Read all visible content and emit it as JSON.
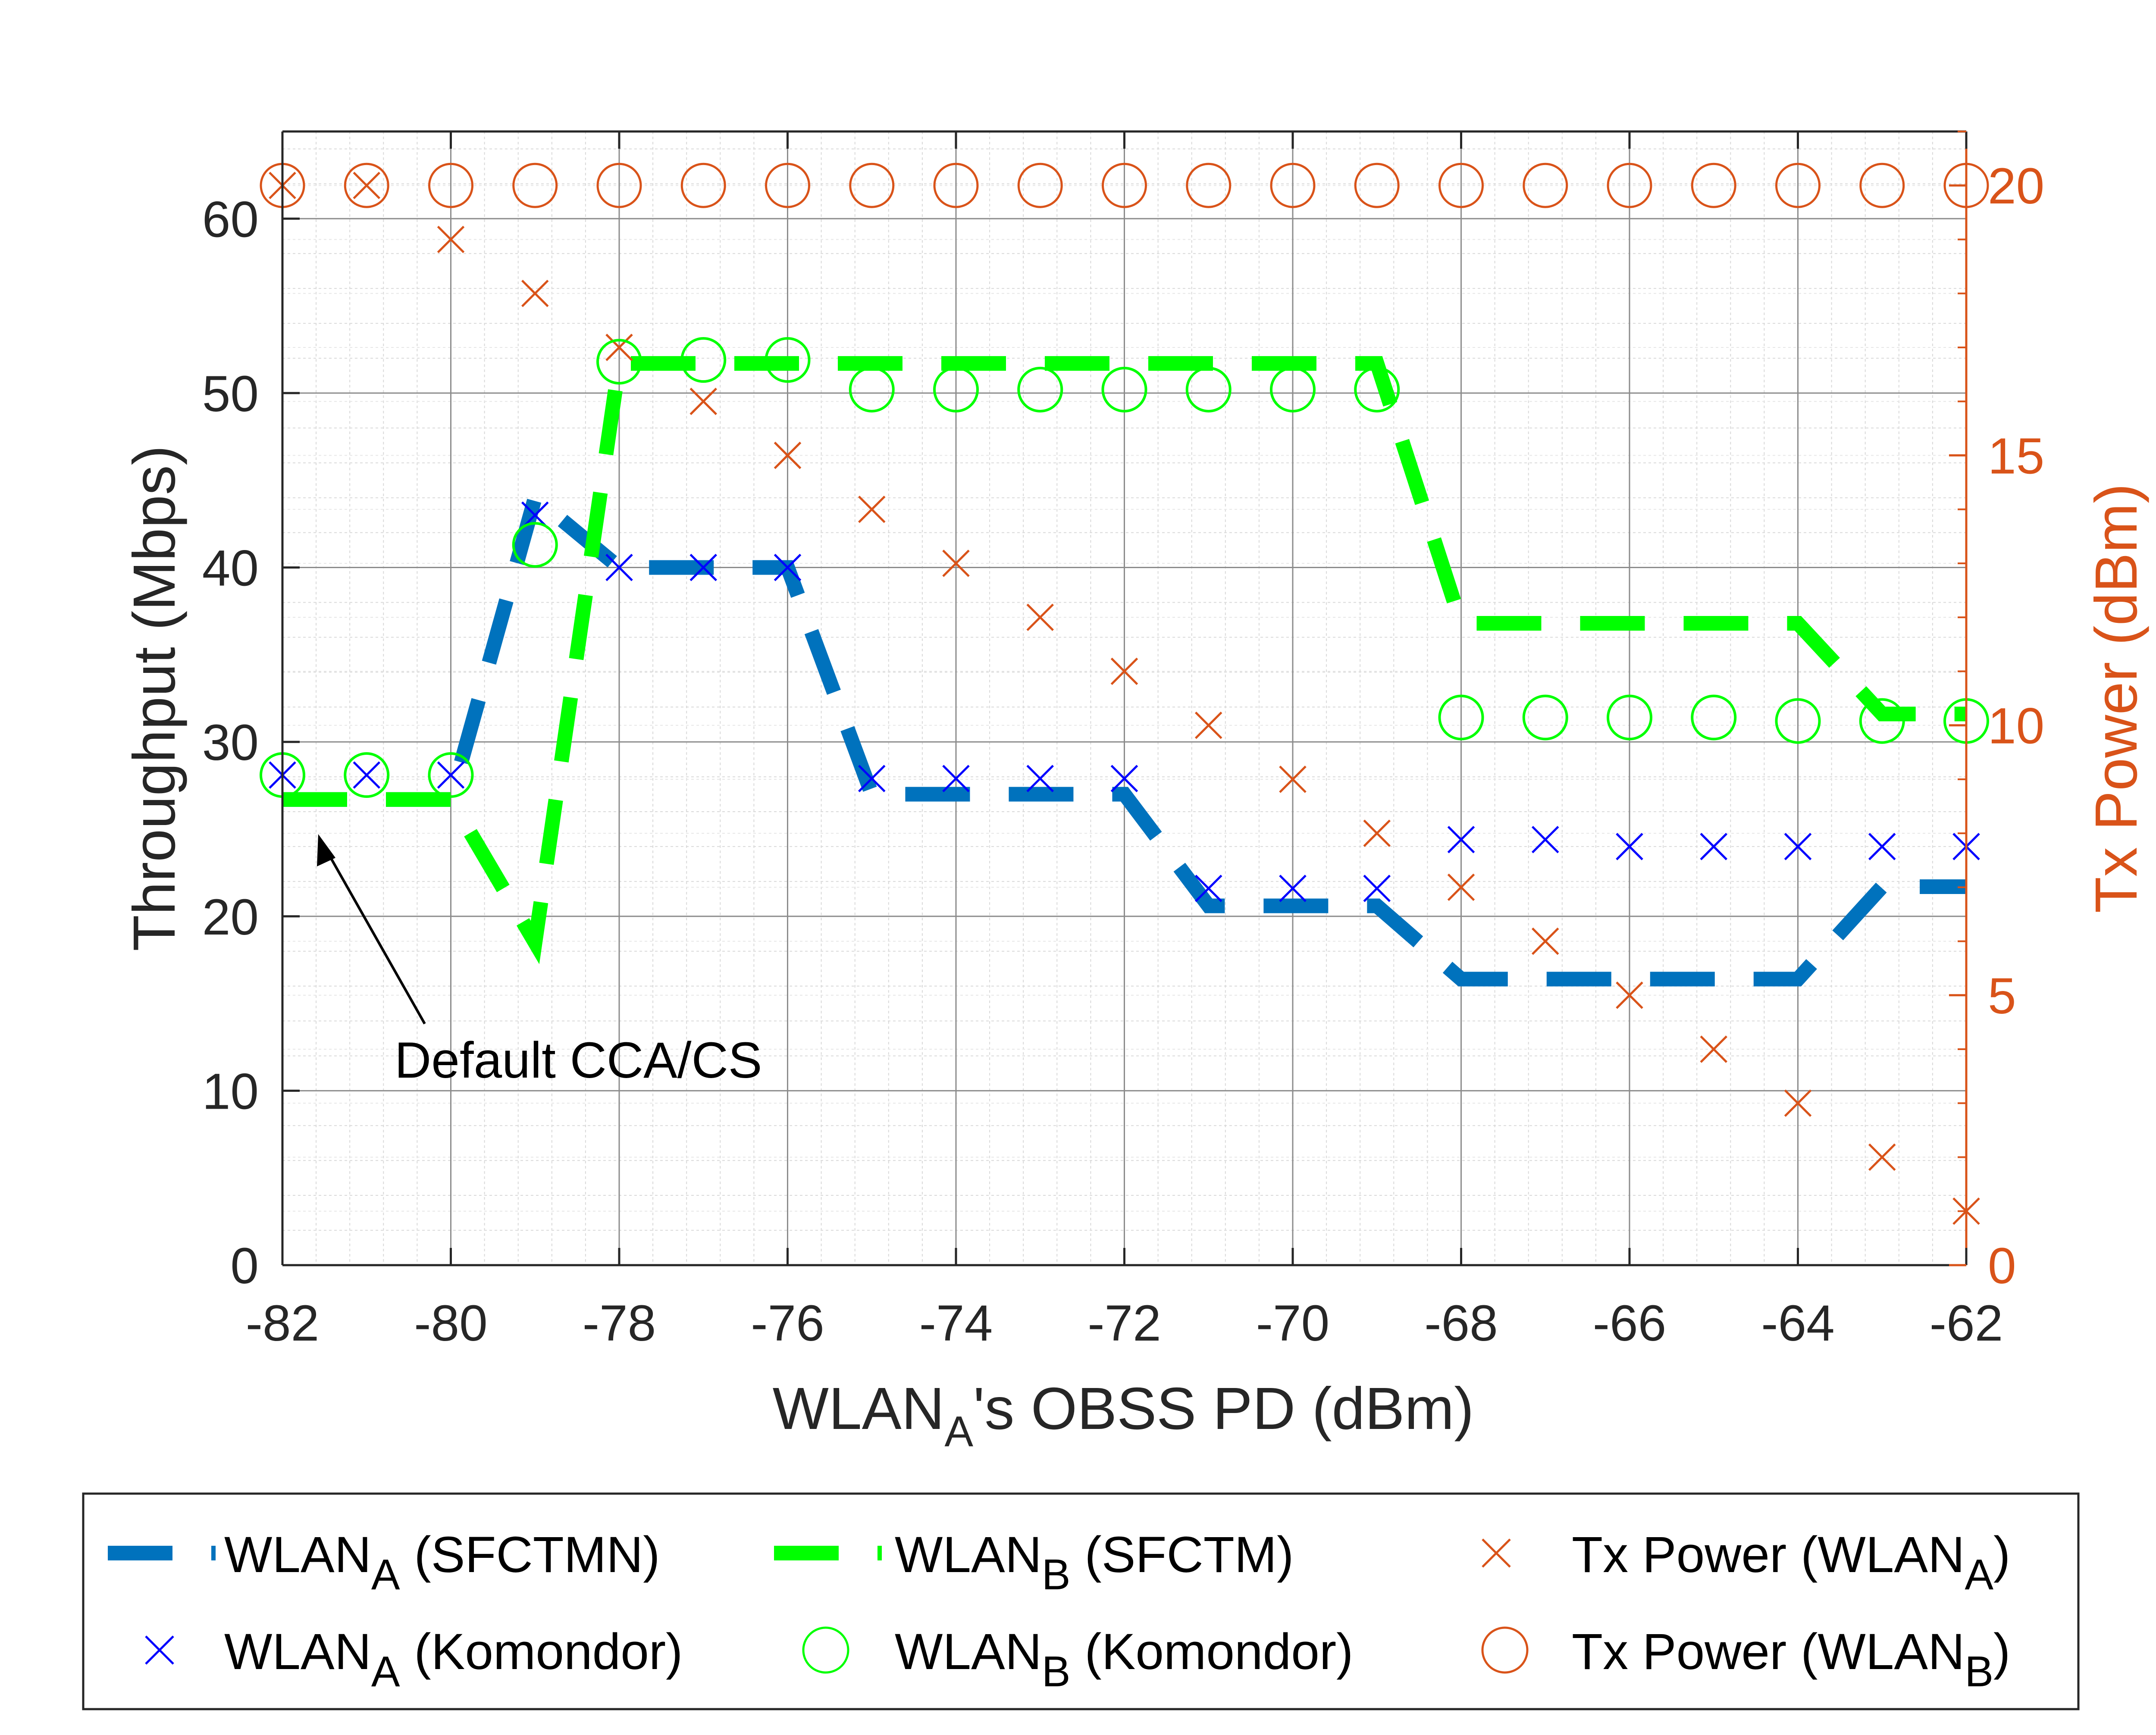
{
  "colors": {
    "wlanA": "#0072BD",
    "wlanB": "#00FF00",
    "txA": "#D95319",
    "txB": "#D95319",
    "komA": "#0000FF",
    "axis": "#262626"
  },
  "chart_data": {
    "type": "line",
    "xlabel": {
      "pre": "WLAN",
      "sub": "A",
      "post": "'s OBSS PD (dBm)"
    },
    "ylabel_left": "Throughput (Mbps)",
    "ylabel_right": "Tx Power (dBm)",
    "xlim": [
      -82,
      -62
    ],
    "ylim_left": [
      0,
      65
    ],
    "ylim_right": [
      0,
      21
    ],
    "x_ticks": [
      -82,
      -80,
      -78,
      -76,
      -74,
      -72,
      -70,
      -68,
      -66,
      -64,
      -62
    ],
    "x_tick_labels": [
      "-82",
      "-80",
      "-78",
      "-76",
      "-74",
      "-72",
      "-70",
      "-68",
      "-66",
      "-64",
      "-62"
    ],
    "y_left_ticks": [
      0,
      10,
      20,
      30,
      40,
      50,
      60
    ],
    "y_left_tick_labels": [
      "0",
      "10",
      "20",
      "30",
      "40",
      "50",
      "60"
    ],
    "y_right_ticks": [
      0,
      5,
      10,
      15,
      20
    ],
    "y_right_tick_labels": [
      "0",
      "5",
      "10",
      "15",
      "20"
    ],
    "grid": true,
    "minor_grid": true,
    "annotation": {
      "text": "Default CCA/CS",
      "points_to": [
        -81.7,
        24.8
      ]
    },
    "legend_position": "bottom",
    "x": [
      -82,
      -81,
      -80,
      -79,
      -78,
      -77,
      -76,
      -75,
      -74,
      -73,
      -72,
      -71,
      -70,
      -69,
      -68,
      -67,
      -66,
      -65,
      -64,
      -63,
      -62
    ],
    "series": [
      {
        "name": "WLAN",
        "sub": "A",
        "suffix": " (SFCTMN)",
        "kind": "dashed-line",
        "axis": "left",
        "values": [
          26.7,
          26.7,
          26.7,
          44,
          40,
          40,
          40,
          27,
          27,
          27,
          27,
          20.6,
          20.6,
          20.6,
          16.4,
          16.4,
          16.4,
          16.4,
          16.4,
          21.7,
          21.7
        ]
      },
      {
        "name": "WLAN",
        "sub": "B",
        "suffix": " (SFCTM)",
        "kind": "dashed-line",
        "axis": "left",
        "values": [
          26.7,
          26.7,
          26.7,
          18.5,
          51.7,
          51.7,
          51.7,
          51.7,
          51.7,
          51.7,
          51.7,
          51.7,
          51.7,
          51.7,
          36.8,
          36.8,
          36.8,
          36.8,
          36.8,
          31.6,
          31.6
        ]
      },
      {
        "name": "Tx Power (WLAN",
        "sub": "A",
        "suffix": ")",
        "kind": "x-marker",
        "axis": "right",
        "values": [
          20,
          20,
          19,
          18,
          17,
          16,
          15,
          14,
          13,
          12,
          11,
          10,
          9,
          8,
          7,
          6,
          5,
          4,
          3,
          2,
          1
        ]
      },
      {
        "name": "WLAN",
        "sub": "A",
        "suffix": " (Komondor)",
        "kind": "x-marker",
        "axis": "left",
        "values": [
          28.1,
          28.1,
          28.1,
          43,
          40,
          40,
          40,
          27.9,
          27.9,
          27.9,
          27.9,
          21.6,
          21.6,
          21.6,
          24.4,
          24.4,
          24,
          24,
          24,
          24,
          24
        ]
      },
      {
        "name": "WLAN",
        "sub": "B",
        "suffix": " (Komondor)",
        "kind": "o-marker",
        "axis": "left",
        "values": [
          28.1,
          28.1,
          28.1,
          41.3,
          51.8,
          51.9,
          51.9,
          50.2,
          50.2,
          50.2,
          50.2,
          50.2,
          50.2,
          50.2,
          31.4,
          31.4,
          31.4,
          31.4,
          31.2,
          31.2,
          31.2
        ]
      },
      {
        "name": "Tx Power (WLAN",
        "sub": "B",
        "suffix": ")",
        "kind": "o-marker",
        "axis": "right",
        "values": [
          20,
          20,
          20,
          20,
          20,
          20,
          20,
          20,
          20,
          20,
          20,
          20,
          20,
          20,
          20,
          20,
          20,
          20,
          20,
          20,
          20
        ]
      }
    ]
  }
}
